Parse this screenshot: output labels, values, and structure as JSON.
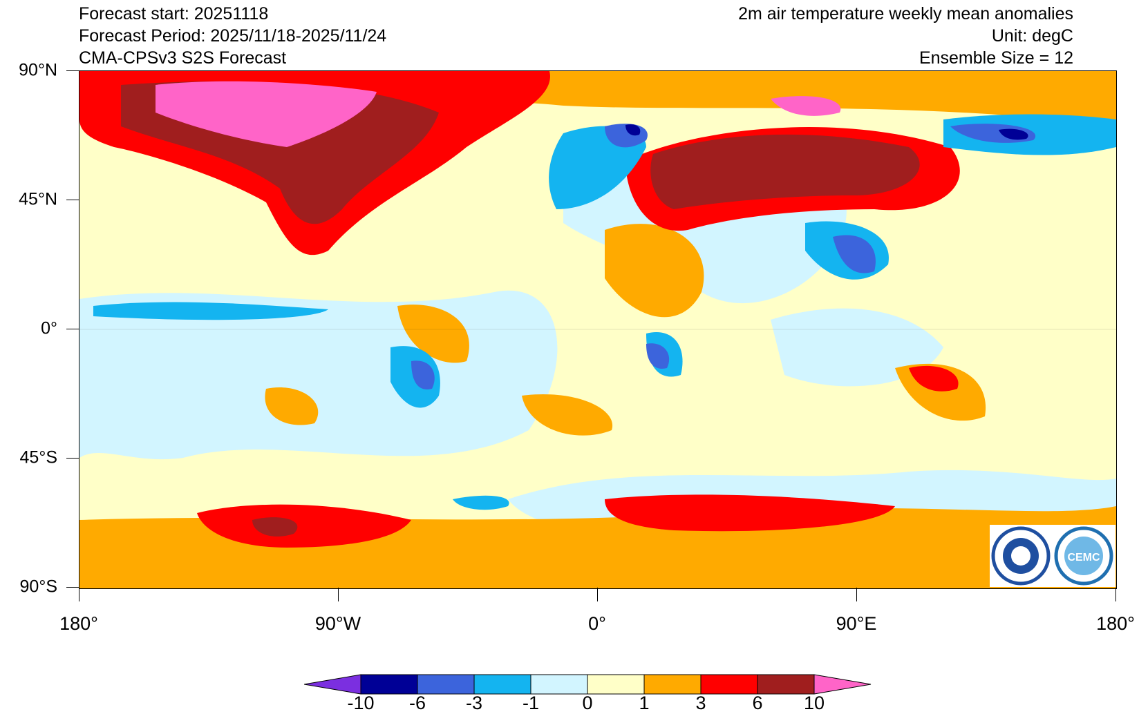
{
  "header": {
    "forecast_start": "Forecast start: 20251118",
    "forecast_period": "Forecast Period: 2025/11/18-2025/11/24",
    "model": "CMA-CPSv3 S2S Forecast",
    "variable": "2m air temperature weekly mean anomalies",
    "unit": "Unit: degC",
    "ensemble": "Ensemble Size = 12"
  },
  "axes": {
    "lat_labels": [
      "90°N",
      "45°N",
      "0°",
      "45°S",
      "90°S"
    ],
    "lon_labels": [
      "180°",
      "90°W",
      "0°",
      "90°E",
      "180°"
    ]
  },
  "colorbar": {
    "levels": [
      "-10",
      "-6",
      "-3",
      "-1",
      "0",
      "1",
      "3",
      "6",
      "10"
    ],
    "colors": [
      "#7b2fe0",
      "#000096",
      "#3c64dc",
      "#14b4f0",
      "#d2f5ff",
      "#ffffc8",
      "#ffaa00",
      "#ff0000",
      "#a01e1e",
      "#ff64c8"
    ]
  },
  "logos": {
    "left": "CMA logo",
    "right": "CEMC"
  }
}
